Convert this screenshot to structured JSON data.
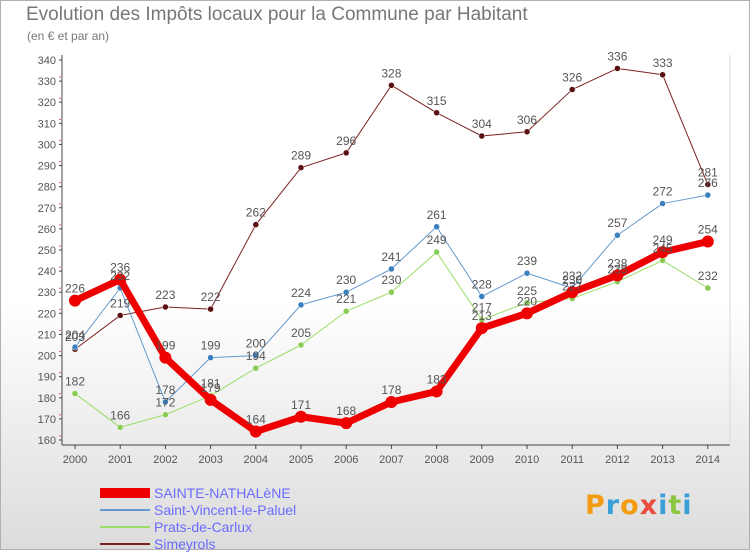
{
  "title": "Evolution des Impôts locaux pour la Commune par Habitant",
  "subtitle": "(en € et par an)",
  "logo": {
    "letters": [
      "P",
      "r",
      "o",
      "x",
      "i",
      "t",
      "i"
    ],
    "colors": [
      "#f39c12",
      "#3ba0d8",
      "#f39c12",
      "#e74c3c",
      "#3ba0d8",
      "#8cc63f",
      "#3ba0d8"
    ]
  },
  "chart_data": {
    "type": "line",
    "x": [
      "2000",
      "2001",
      "2002",
      "2003",
      "2004",
      "2005",
      "2006",
      "2007",
      "2008",
      "2009",
      "2010",
      "2011",
      "2012",
      "2013",
      "2014"
    ],
    "ylim": [
      160,
      340
    ],
    "yticks": [
      160,
      170,
      180,
      190,
      200,
      210,
      220,
      230,
      240,
      250,
      260,
      270,
      280,
      290,
      300,
      310,
      320,
      330,
      340
    ],
    "grid": false,
    "legend": "bottom-left",
    "series": [
      {
        "name": "Simeyrols",
        "color": "#7b2020",
        "marker": "#5a1010",
        "width": 1,
        "values": [
          203,
          219,
          223,
          222,
          262,
          289,
          296,
          328,
          315,
          304,
          306,
          326,
          336,
          333,
          281
        ]
      },
      {
        "name": "Prats-de-Carlux",
        "color": "#99dd66",
        "marker": "#88cc55",
        "width": 1,
        "values": [
          182,
          166,
          172,
          181,
          194,
          205,
          221,
          230,
          249,
          217,
          225,
          227,
          235,
          245,
          232
        ]
      },
      {
        "name": "Saint-Vincent-le-Paluel",
        "color": "#6699cc",
        "marker": "#3a7fbf",
        "width": 1,
        "values": [
          204,
          232,
          178,
          199,
          200,
          224,
          230,
          241,
          261,
          228,
          239,
          232,
          257,
          272,
          276
        ]
      },
      {
        "name": "SAINTE-NATHALèNE",
        "color": "#ee0000",
        "marker": "#ee0000",
        "width": 7,
        "values": [
          226,
          236,
          199,
          179,
          164,
          171,
          168,
          178,
          183,
          213,
          220,
          230,
          238,
          249,
          254
        ]
      }
    ],
    "legend_order": [
      3,
      2,
      1,
      0
    ]
  }
}
